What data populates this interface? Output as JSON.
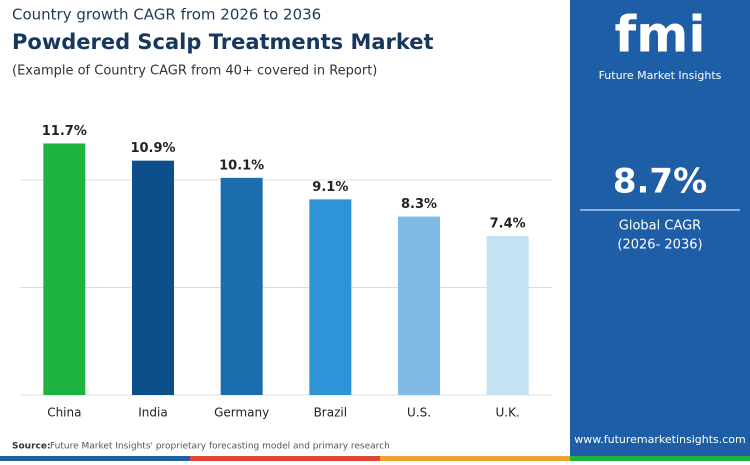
{
  "chart_data": {
    "type": "bar",
    "supertitle": "Country growth CAGR from 2026 to 2036",
    "title": "Powdered Scalp Treatments Market",
    "subtitle": "(Example of Country CAGR from 40+ covered in Report)",
    "categories": [
      "China",
      "India",
      "Germany",
      "Brazil",
      "U.S.",
      "U.K."
    ],
    "values": [
      11.7,
      10.9,
      10.1,
      9.1,
      8.3,
      7.4
    ],
    "value_labels": [
      "11.7%",
      "10.9%",
      "10.1%",
      "9.1%",
      "8.3%",
      "7.4%"
    ],
    "colors": [
      "#1db33f",
      "#0c4f8a",
      "#1b6eae",
      "#2f93d8",
      "#7fbbe4",
      "#c5e1f4"
    ],
    "ylim": [
      0,
      14
    ],
    "yticks": [
      0,
      5,
      10
    ],
    "grid": true
  },
  "panel": {
    "logo": "fmi",
    "logo_caption": "Future Market Insights",
    "headline": "8.7%",
    "headline_caption": "Global CAGR",
    "headline_period": "(2026- 2036)",
    "url": "www.futuremarketinsights.com"
  },
  "footer": {
    "source_label": "Source:",
    "source": "Future Market Insights' proprietary forecasting model and primary research"
  }
}
